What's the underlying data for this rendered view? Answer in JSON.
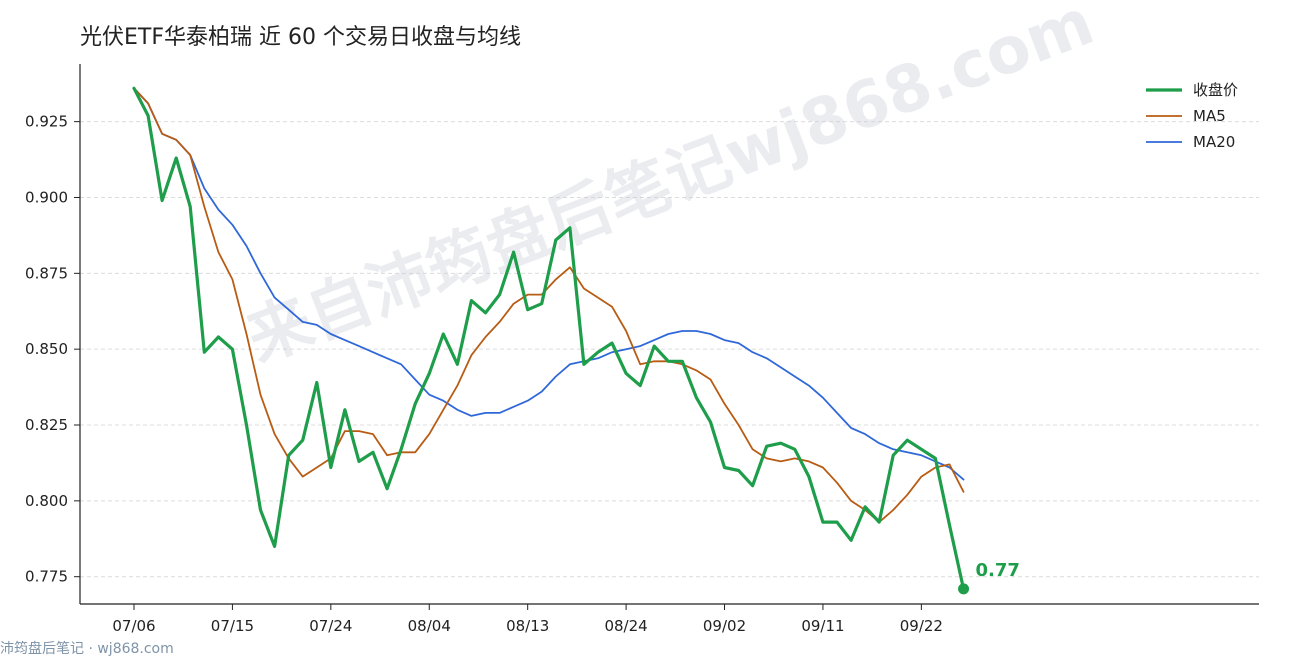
{
  "title": "光伏ETF华泰柏瑞 近 60 个交易日收盘与均线",
  "watermark": "来自沛筠盘后笔记wj868.com",
  "footer": "沛筠盘后笔记 · wj868.com",
  "end_label": "0.77",
  "colors": {
    "close": "#1e9e4a",
    "ma5": "#b85c14",
    "ma20": "#2f68d8",
    "grid": "#dcdcdc",
    "axis": "#222222"
  },
  "chart_data": {
    "type": "line",
    "title": "光伏ETF华泰柏瑞 近 60 个交易日收盘与均线",
    "xlabel": "",
    "ylabel": "",
    "ylim": [
      0.766,
      0.944
    ],
    "yticks": [
      0.775,
      0.8,
      0.825,
      0.85,
      0.875,
      0.9,
      0.925
    ],
    "ytick_labels": [
      "0.775",
      "0.800",
      "0.825",
      "0.850",
      "0.875",
      "0.900",
      "0.925"
    ],
    "xtick_labels": [
      "07/06",
      "07/15",
      "07/24",
      "08/04",
      "08/13",
      "08/24",
      "09/02",
      "09/11",
      "09/22"
    ],
    "xtick_index": [
      0,
      7,
      14,
      21,
      28,
      35,
      42,
      49,
      56
    ],
    "dates": [
      "07/06",
      "07/07",
      "07/08",
      "07/09",
      "07/10",
      "07/11",
      "07/14",
      "07/15",
      "07/16",
      "07/17",
      "07/18",
      "07/21",
      "07/22",
      "07/23",
      "07/24",
      "07/25",
      "07/28",
      "07/29",
      "07/30",
      "07/31",
      "08/01",
      "08/04",
      "08/05",
      "08/06",
      "08/07",
      "08/08",
      "08/11",
      "08/12",
      "08/13",
      "08/14",
      "08/15",
      "08/18",
      "08/19",
      "08/20",
      "08/21",
      "08/24",
      "08/25",
      "08/26",
      "08/27",
      "08/28",
      "08/29",
      "09/01",
      "09/02",
      "09/03",
      "09/04",
      "09/05",
      "09/08",
      "09/09",
      "09/10",
      "09/11",
      "09/12",
      "09/15",
      "09/16",
      "09/17",
      "09/18",
      "09/19",
      "09/22",
      "09/23",
      "09/24",
      "09/25"
    ],
    "grid": true,
    "legend_position": "top-right",
    "series": [
      {
        "name": "收盘价",
        "values": [
          0.936,
          0.927,
          0.899,
          0.913,
          0.897,
          0.849,
          0.854,
          0.85,
          0.825,
          0.797,
          0.785,
          0.815,
          0.82,
          0.839,
          0.811,
          0.83,
          0.813,
          0.816,
          0.804,
          0.817,
          0.832,
          0.842,
          0.855,
          0.845,
          0.866,
          0.862,
          0.868,
          0.882,
          0.863,
          0.865,
          0.886,
          0.89,
          0.845,
          0.849,
          0.852,
          0.842,
          0.838,
          0.851,
          0.846,
          0.846,
          0.834,
          0.826,
          0.811,
          0.81,
          0.805,
          0.818,
          0.819,
          0.817,
          0.808,
          0.793,
          0.793,
          0.787,
          0.798,
          0.793,
          0.815,
          0.82,
          0.817,
          0.814,
          0.792,
          0.771
        ]
      },
      {
        "name": "MA5",
        "values": [
          0.936,
          0.931,
          0.921,
          0.919,
          0.914,
          0.897,
          0.882,
          0.873,
          0.855,
          0.835,
          0.822,
          0.814,
          0.808,
          0.811,
          0.814,
          0.823,
          0.823,
          0.822,
          0.815,
          0.816,
          0.816,
          0.822,
          0.83,
          0.838,
          0.848,
          0.854,
          0.859,
          0.865,
          0.868,
          0.868,
          0.873,
          0.877,
          0.87,
          0.867,
          0.864,
          0.856,
          0.845,
          0.846,
          0.846,
          0.845,
          0.843,
          0.84,
          0.832,
          0.825,
          0.817,
          0.814,
          0.813,
          0.814,
          0.813,
          0.811,
          0.806,
          0.8,
          0.797,
          0.793,
          0.797,
          0.802,
          0.808,
          0.811,
          0.812,
          0.803
        ]
      },
      {
        "name": "MA20",
        "values": [
          0.936,
          0.931,
          0.921,
          0.919,
          0.914,
          0.903,
          0.896,
          0.891,
          0.884,
          0.875,
          0.867,
          0.863,
          0.859,
          0.858,
          0.855,
          0.853,
          0.851,
          0.849,
          0.847,
          0.845,
          0.84,
          0.835,
          0.833,
          0.83,
          0.828,
          0.829,
          0.829,
          0.831,
          0.833,
          0.836,
          0.841,
          0.845,
          0.846,
          0.847,
          0.849,
          0.85,
          0.851,
          0.853,
          0.855,
          0.856,
          0.856,
          0.855,
          0.853,
          0.852,
          0.849,
          0.847,
          0.844,
          0.841,
          0.838,
          0.834,
          0.829,
          0.824,
          0.822,
          0.819,
          0.817,
          0.816,
          0.815,
          0.813,
          0.811,
          0.807
        ]
      }
    ]
  }
}
